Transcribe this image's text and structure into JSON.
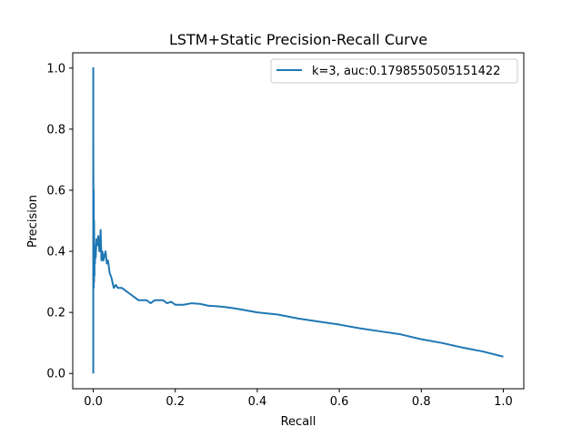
{
  "chart_data": {
    "type": "line",
    "title": "LSTM+Static Precision-Recall Curve",
    "xlabel": "Recall",
    "ylabel": "Precision",
    "xlim": [
      -0.05,
      1.05
    ],
    "ylim": [
      -0.05,
      1.05
    ],
    "xticks": [
      0.0,
      0.2,
      0.4,
      0.6,
      0.8,
      1.0
    ],
    "yticks": [
      0.0,
      0.2,
      0.4,
      0.6,
      0.8,
      1.0
    ],
    "xtick_labels": [
      "0.0",
      "0.2",
      "0.4",
      "0.6",
      "0.8",
      "1.0"
    ],
    "ytick_labels": [
      "0.0",
      "0.2",
      "0.4",
      "0.6",
      "0.8",
      "1.0"
    ],
    "grid": false,
    "legend_position": "upper right",
    "series": [
      {
        "name": "k=3, auc:0.1798550505151422",
        "color": "#1f77b4",
        "x": [
          0.0,
          0.0,
          0.0,
          0.0,
          0.001,
          0.001,
          0.002,
          0.002,
          0.003,
          0.003,
          0.004,
          0.005,
          0.006,
          0.008,
          0.01,
          0.012,
          0.015,
          0.018,
          0.02,
          0.022,
          0.025,
          0.028,
          0.03,
          0.033,
          0.036,
          0.04,
          0.045,
          0.05,
          0.055,
          0.06,
          0.07,
          0.08,
          0.09,
          0.1,
          0.11,
          0.12,
          0.13,
          0.14,
          0.15,
          0.16,
          0.17,
          0.18,
          0.19,
          0.2,
          0.22,
          0.24,
          0.26,
          0.28,
          0.3,
          0.32,
          0.35,
          0.38,
          0.4,
          0.45,
          0.5,
          0.55,
          0.6,
          0.65,
          0.7,
          0.75,
          0.8,
          0.85,
          0.9,
          0.95,
          1.0
        ],
        "y": [
          0.0,
          1.0,
          0.3,
          0.8,
          0.28,
          0.6,
          0.3,
          0.5,
          0.32,
          0.42,
          0.36,
          0.4,
          0.38,
          0.44,
          0.42,
          0.45,
          0.4,
          0.47,
          0.37,
          0.4,
          0.37,
          0.39,
          0.4,
          0.36,
          0.37,
          0.33,
          0.31,
          0.28,
          0.29,
          0.28,
          0.28,
          0.27,
          0.26,
          0.25,
          0.24,
          0.24,
          0.24,
          0.23,
          0.24,
          0.24,
          0.24,
          0.23,
          0.235,
          0.225,
          0.225,
          0.23,
          0.228,
          0.222,
          0.22,
          0.218,
          0.212,
          0.205,
          0.2,
          0.193,
          0.18,
          0.17,
          0.16,
          0.148,
          0.138,
          0.128,
          0.112,
          0.1,
          0.085,
          0.072,
          0.055
        ]
      }
    ]
  }
}
